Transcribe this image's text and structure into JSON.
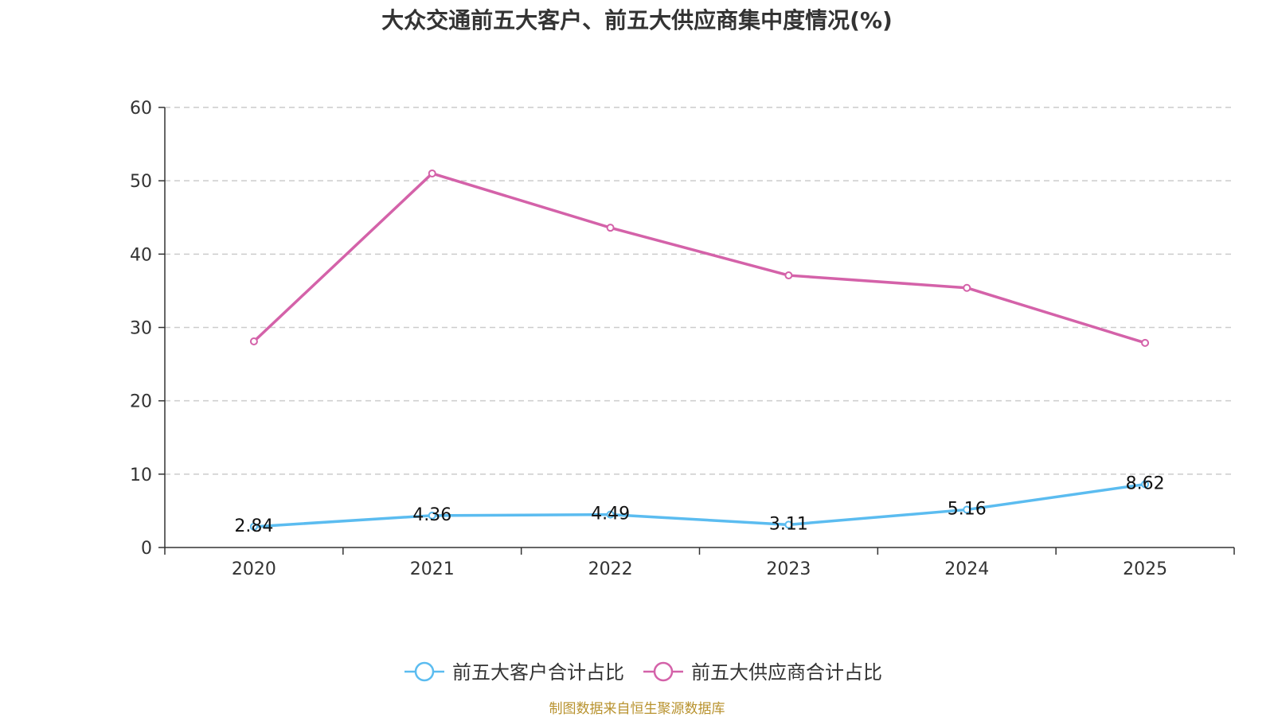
{
  "chart_data": {
    "type": "line",
    "title": "大众交通前五大客户、前五大供应商集中度情况(%)",
    "categories": [
      "2020",
      "2021",
      "2022",
      "2023",
      "2024",
      "2025"
    ],
    "ylim": [
      0,
      60
    ],
    "yticks": [
      0,
      10,
      20,
      30,
      40,
      50,
      60
    ],
    "grid": true,
    "legend_position": "bottom",
    "series": [
      {
        "name": "前五大客户合计占比",
        "color": "#5bbcf0",
        "values": [
          2.84,
          4.36,
          4.49,
          3.11,
          5.16,
          8.62
        ],
        "show_labels": true
      },
      {
        "name": "前五大供应商合计占比",
        "color": "#d462a9",
        "values": [
          28.1,
          51.0,
          43.6,
          37.1,
          35.4,
          27.9
        ],
        "show_labels": false
      }
    ]
  },
  "source_note": "制图数据来自恒生聚源数据库"
}
